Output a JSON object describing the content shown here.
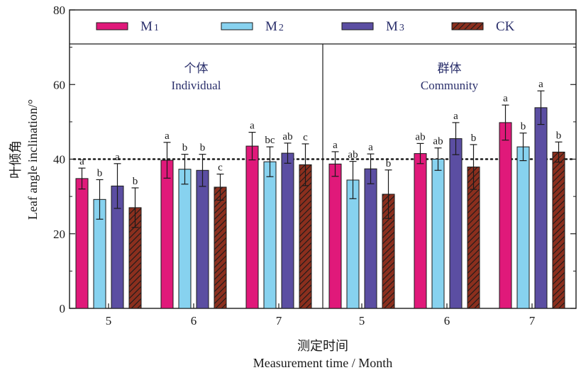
{
  "chart_data": {
    "type": "bar",
    "ylabel_cn": "叶倾角",
    "ylabel_en": "Leaf angle inclination/°",
    "xlabel_cn": "测定时间",
    "xlabel_en": "Measurement time / Month",
    "ylim": [
      0,
      80
    ],
    "yticks": [
      0,
      20,
      40,
      60,
      80
    ],
    "reference_line": 40,
    "legend_position": "top",
    "panels": [
      {
        "title_cn": "个体",
        "title_en": "Individual",
        "categories": [
          "5",
          "6",
          "7"
        ],
        "series": [
          {
            "name": "M",
            "sub": "1",
            "values": [
              34.8,
              39.7,
              43.5
            ],
            "errors": [
              2.8,
              4.8,
              3.7
            ],
            "labels": [
              "a",
              "a",
              "a"
            ]
          },
          {
            "name": "M",
            "sub": "2",
            "values": [
              29.2,
              37.3,
              39.3
            ],
            "errors": [
              5.3,
              4.0,
              4.0
            ],
            "labels": [
              "b",
              "b",
              "bc"
            ]
          },
          {
            "name": "M",
            "sub": "3",
            "values": [
              32.8,
              37.0,
              41.6
            ],
            "errors": [
              6.0,
              4.3,
              2.7
            ],
            "labels": [
              "a",
              "b",
              "ab"
            ]
          },
          {
            "name": "CK",
            "sub": "",
            "values": [
              27.0,
              32.5,
              38.5
            ],
            "errors": [
              5.3,
              3.5,
              5.6
            ],
            "labels": [
              "b",
              "c",
              "c"
            ]
          }
        ]
      },
      {
        "title_cn": "群体",
        "title_en": "Community",
        "categories": [
          "5",
          "6",
          "7"
        ],
        "series": [
          {
            "name": "M",
            "sub": "1",
            "values": [
              38.7,
              41.5,
              49.8
            ],
            "errors": [
              3.3,
              2.7,
              4.7
            ],
            "labels": [
              "a",
              "ab",
              "a"
            ]
          },
          {
            "name": "M",
            "sub": "2",
            "values": [
              34.4,
              40.0,
              43.3
            ],
            "errors": [
              5.0,
              3.0,
              3.7
            ],
            "labels": [
              "ab",
              "ab",
              "b"
            ]
          },
          {
            "name": "M",
            "sub": "3",
            "values": [
              37.4,
              45.5,
              53.8
            ],
            "errors": [
              4.0,
              4.3,
              4.5
            ],
            "labels": [
              "a",
              "a",
              "a"
            ]
          },
          {
            "name": "CK",
            "sub": "",
            "values": [
              30.6,
              37.9,
              41.9
            ],
            "errors": [
              6.5,
              6.0,
              2.7
            ],
            "labels": [
              "b",
              "b",
              "b"
            ]
          }
        ]
      }
    ]
  },
  "colors": {
    "M1": "#e0197a",
    "M2": "#87d2ef",
    "M3": "#5b4ea2",
    "CK": "#8b2f1e",
    "CK_hatch": "#1a1a1a",
    "panel_text": "#2a2f6b",
    "axis": "#1a1a1a"
  }
}
